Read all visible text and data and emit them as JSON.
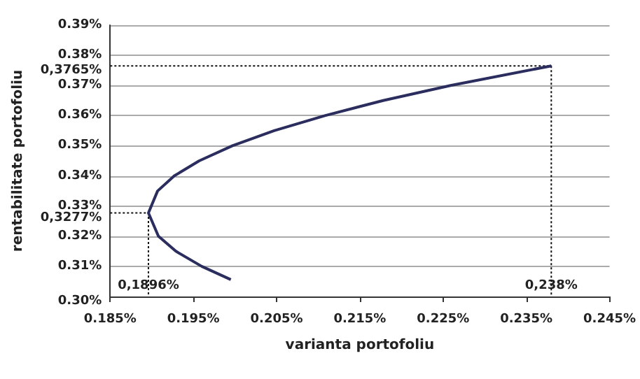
{
  "chart_data": {
    "type": "line",
    "xlabel": "varianta portofoliu",
    "ylabel": "rentabilitate portofoliu",
    "series": [
      {
        "color": "#2b2d5e",
        "x": [
          0.1995,
          0.196,
          0.1929,
          0.1908,
          0.1896,
          0.1907,
          0.1927,
          0.1957,
          0.1997,
          0.2047,
          0.2108,
          0.2178,
          0.2259,
          0.238
        ],
        "values": [
          0.3056,
          0.31,
          0.315,
          0.32,
          0.3277,
          0.335,
          0.34,
          0.345,
          0.35,
          0.355,
          0.36,
          0.365,
          0.37,
          0.3765
        ]
      },
      {
        "color": "#111111",
        "line_style": "dotted",
        "x": [
          0.185,
          0.238,
          0.238
        ],
        "values": [
          0.3765,
          0.3765,
          0.3
        ]
      },
      {
        "color": "#111111",
        "line_style": "dotted",
        "x": [
          0.185,
          0.1896,
          0.1896
        ],
        "values": [
          0.3277,
          0.3277,
          0.3
        ]
      }
    ],
    "xlim": [
      0.185,
      0.245
    ],
    "xticks": [
      {
        "value": 0.185,
        "label": "0.185%"
      },
      {
        "value": 0.195,
        "label": "0.195%"
      },
      {
        "value": 0.205,
        "label": "0.205%"
      },
      {
        "value": 0.215,
        "label": "0.215%"
      },
      {
        "value": 0.225,
        "label": "0.225%"
      },
      {
        "value": 0.235,
        "label": "0.235%"
      },
      {
        "value": 0.245,
        "label": "0.245%"
      }
    ],
    "ylim": [
      0.3,
      0.39
    ],
    "yticks": [
      {
        "value": 0.3,
        "label": "0.30%"
      },
      {
        "value": 0.31,
        "label": "0.31%"
      },
      {
        "value": 0.32,
        "label": "0.32%"
      },
      {
        "value": 0.3277,
        "label": "0,3277%"
      },
      {
        "value": 0.33,
        "label": "0.33%"
      },
      {
        "value": 0.34,
        "label": "0.34%"
      },
      {
        "value": 0.35,
        "label": "0.35%"
      },
      {
        "value": 0.36,
        "label": "0.36%"
      },
      {
        "value": 0.37,
        "label": "0.37%"
      },
      {
        "value": 0.3765,
        "label": "0,3765%"
      },
      {
        "value": 0.38,
        "label": "0.38%"
      },
      {
        "value": 0.39,
        "label": "0.39%"
      }
    ],
    "annotations": [
      {
        "text": "0,1896%",
        "x": 0.1896,
        "y": 0.3
      },
      {
        "text": "0,238%",
        "x": 0.238,
        "y": 0.3
      }
    ],
    "grid": "y",
    "marker": "none",
    "line_style": "solid"
  }
}
